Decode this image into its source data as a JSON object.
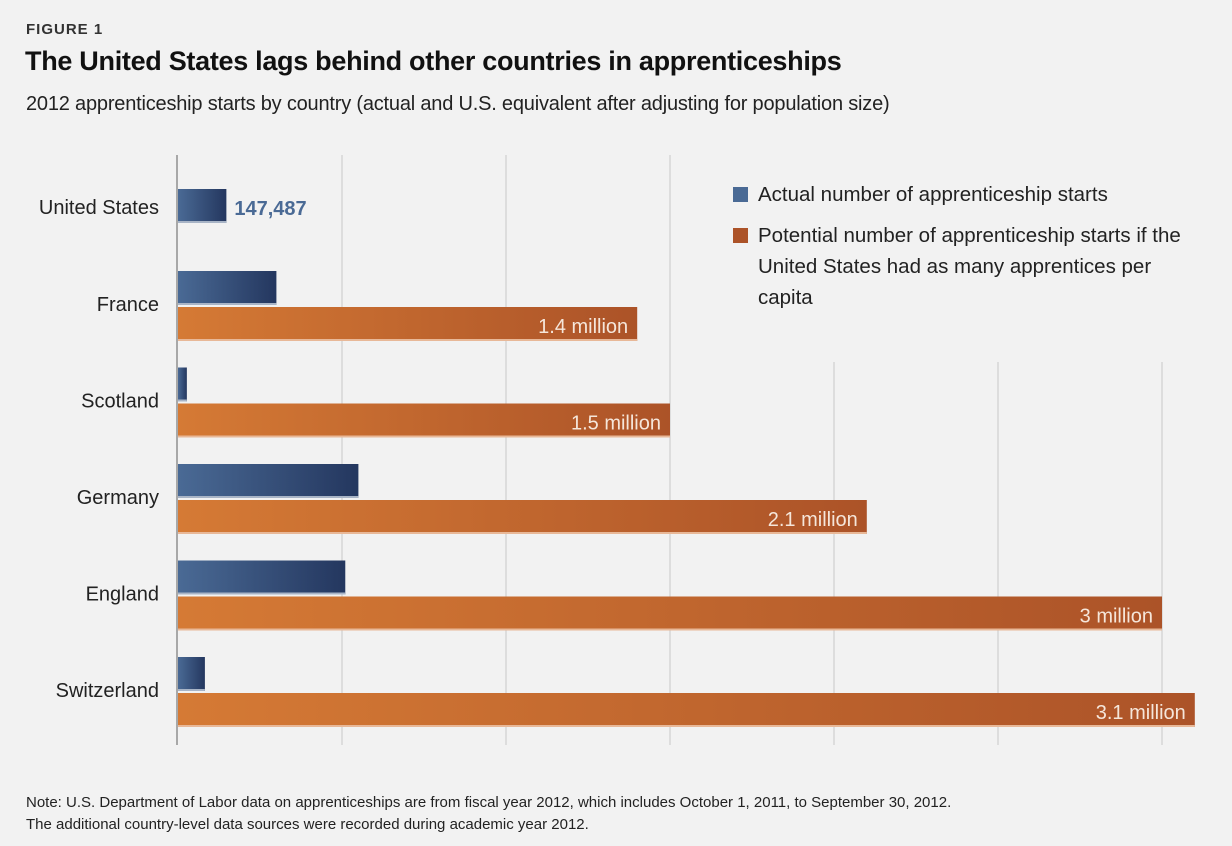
{
  "figure_label": "FIGURE 1",
  "title": "The United States lags behind other countries in apprenticeships",
  "subtitle": "2012 apprenticeship starts by country (actual and U.S. equivalent after adjusting for population size)",
  "colors": {
    "actual_light": "#4a6a95",
    "actual_dark": "#24375f",
    "potential_light": "#d57a35",
    "potential_dark": "#ac5328",
    "gridline": "#dddddd",
    "axis": "#a8a8a8",
    "background": "#f2f2f2"
  },
  "legend": {
    "actual": "Actual number of apprenticeship starts",
    "potential": "Potential number of apprenticeship starts if the United States had as many apprentices per capita"
  },
  "note": {
    "line1": "Note: U.S. Department of Labor data on apprenticeships are from fiscal year 2012, which includes October 1, 2011, to September 30, 2012.",
    "line2": "The additional country-level data sources were recorded during academic year 2012."
  },
  "chart_data": {
    "type": "bar",
    "orientation": "horizontal",
    "title": "The United States lags behind other countries in apprenticeships",
    "subtitle": "2012 apprenticeship starts by country (actual and U.S. equivalent after adjusting for population size)",
    "xlabel": "",
    "ylabel": "",
    "xlim": [
      0,
      3000000
    ],
    "grid": true,
    "grid_step": 500000,
    "tick_labels_shown": false,
    "legend_position": "top-right",
    "categories": [
      "United States",
      "France",
      "Scotland",
      "Germany",
      "England",
      "Switzerland"
    ],
    "series": [
      {
        "name": "Actual number of apprenticeship starts",
        "values": [
          147487,
          300000,
          27000,
          550000,
          510000,
          82000
        ],
        "labels": [
          "147,487",
          null,
          null,
          null,
          null,
          null
        ]
      },
      {
        "name": "Potential number of apprenticeship starts if the United States had as many apprentices per capita",
        "values": [
          null,
          1400000,
          1500000,
          2100000,
          3000000,
          3100000
        ],
        "labels": [
          null,
          "1.4 million",
          "1.5 million",
          "2.1 million",
          "3 million",
          "3.1 million"
        ]
      }
    ]
  }
}
